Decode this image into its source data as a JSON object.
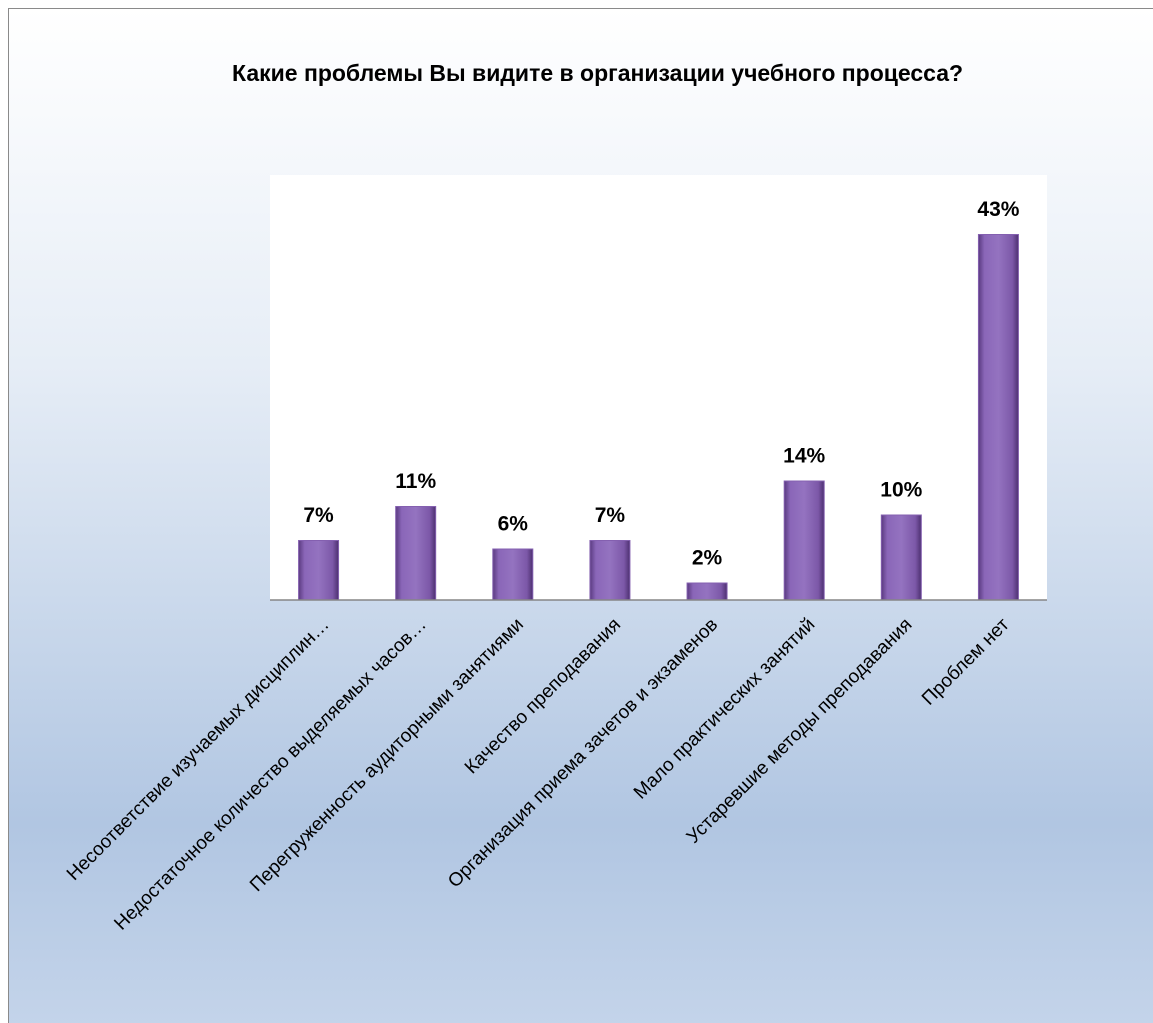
{
  "chart_data": {
    "type": "bar",
    "title": "Какие проблемы Вы видите в организации учебного процесса?",
    "categories": [
      "Несоответствие изучаемых дисциплин…",
      "Недостаточное количество выделяемых часов…",
      "Перегруженность аудиторными занятиями",
      "Качество преподавания",
      "Организация приема зачетов и экзаменов",
      "Мало практических занятий",
      "Устаревшие методы преподавания",
      "Проблем нет"
    ],
    "values": [
      7,
      11,
      6,
      7,
      2,
      14,
      10,
      43
    ],
    "value_labels": [
      "7%",
      "11%",
      "6%",
      "7%",
      "2%",
      "14%",
      "10%",
      "43%"
    ],
    "color": "#8460b0",
    "ylim": [
      0,
      50
    ]
  }
}
